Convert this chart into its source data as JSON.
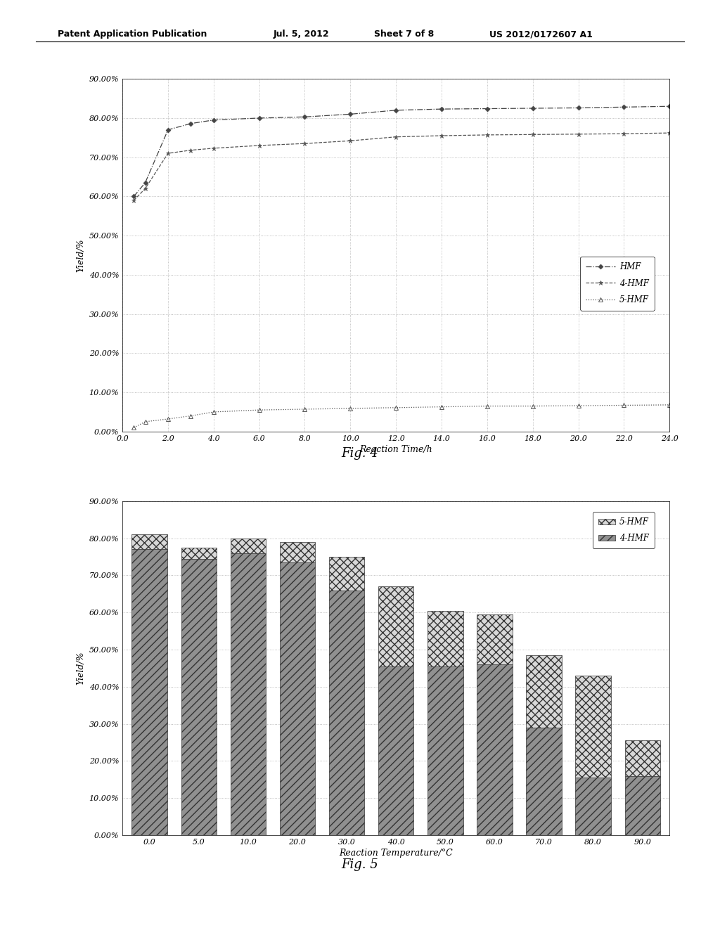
{
  "fig4": {
    "title": "Fig. 4",
    "xlabel": "Reaction Time/h",
    "ylabel": "Yield/%",
    "xlim": [
      0.0,
      24.0
    ],
    "ylim": [
      0.0,
      0.9
    ],
    "xticks": [
      0.0,
      2.0,
      4.0,
      6.0,
      8.0,
      10.0,
      12.0,
      14.0,
      16.0,
      18.0,
      20.0,
      22.0,
      24.0
    ],
    "yticks": [
      0.0,
      0.1,
      0.2,
      0.3,
      0.4,
      0.5,
      0.6,
      0.7,
      0.8,
      0.9
    ],
    "ytick_labels": [
      "0.00%",
      "10.00%",
      "20.00%",
      "30.00%",
      "40.00%",
      "50.00%",
      "60.00%",
      "70.00%",
      "80.00%",
      "90.00%"
    ],
    "HMF_x": [
      1.0,
      2.0,
      3.0,
      4.0,
      6.0,
      8.0,
      10.0,
      12.0,
      14.0,
      16.0,
      18.0,
      20.0,
      22.0,
      24.0
    ],
    "HMF_y": [
      0.635,
      0.77,
      0.786,
      0.795,
      0.8,
      0.803,
      0.81,
      0.82,
      0.823,
      0.824,
      0.825,
      0.826,
      0.828,
      0.83
    ],
    "4HMF_x": [
      1.0,
      2.0,
      3.0,
      4.0,
      6.0,
      8.0,
      10.0,
      12.0,
      14.0,
      16.0,
      18.0,
      20.0,
      22.0,
      24.0
    ],
    "4HMF_y": [
      0.62,
      0.71,
      0.718,
      0.723,
      0.73,
      0.735,
      0.742,
      0.752,
      0.755,
      0.757,
      0.758,
      0.759,
      0.76,
      0.762
    ],
    "5HMF_x": [
      1.0,
      2.0,
      3.0,
      4.0,
      6.0,
      8.0,
      10.0,
      12.0,
      14.0,
      16.0,
      18.0,
      20.0,
      22.0,
      24.0
    ],
    "5HMF_y": [
      0.025,
      0.032,
      0.04,
      0.05,
      0.055,
      0.057,
      0.059,
      0.061,
      0.063,
      0.065,
      0.065,
      0.066,
      0.067,
      0.068
    ],
    "HMF_start_x": [
      0.5
    ],
    "HMF_start_y": [
      0.6
    ],
    "4HMF_start_x": [
      0.5
    ],
    "4HMF_start_y": [
      0.59
    ],
    "5HMF_start_x": [
      0.5
    ],
    "5HMF_start_y": [
      0.01
    ]
  },
  "fig5": {
    "title": "Fig. 5",
    "xlabel": "Reaction Temperature/°C",
    "ylabel": "Yield/%",
    "ylim": [
      0.0,
      0.9
    ],
    "xtick_labels": [
      "0.0",
      "5.0",
      "10.0",
      "20.0",
      "30.0",
      "40.0",
      "50.0",
      "60.0",
      "70.0",
      "80.0",
      "90.0"
    ],
    "yticks": [
      0.0,
      0.1,
      0.2,
      0.3,
      0.4,
      0.5,
      0.6,
      0.7,
      0.8,
      0.9
    ],
    "ytick_labels": [
      "0.00%",
      "10.00%",
      "20.00%",
      "30.00%",
      "40.00%",
      "50.00%",
      "60.00%",
      "70.00%",
      "80.00%",
      "90.00%"
    ],
    "hmf4_values": [
      0.77,
      0.745,
      0.76,
      0.735,
      0.66,
      0.455,
      0.455,
      0.46,
      0.29,
      0.155,
      0.16
    ],
    "hmf5_values": [
      0.04,
      0.03,
      0.04,
      0.055,
      0.09,
      0.215,
      0.15,
      0.135,
      0.195,
      0.275,
      0.095
    ],
    "legend_labels": [
      "5-HMF",
      "4-HMF"
    ]
  },
  "header_line1": "Patent Application Publication",
  "header_line2": "Jul. 5, 2012",
  "header_line3": "Sheet 7 of 8",
  "header_line4": "US 2012/0172607 A1"
}
